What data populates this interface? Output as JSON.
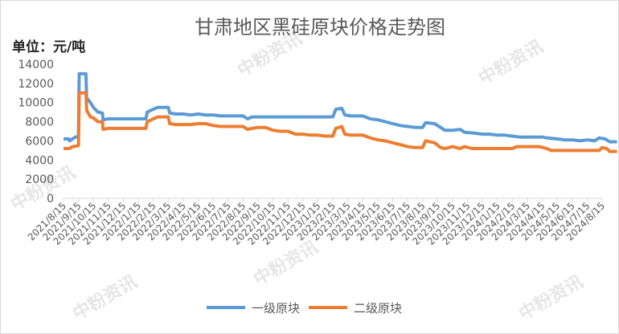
{
  "chart_data": {
    "type": "line",
    "title": "甘肃地区黑硅原块价格走势图",
    "unit_label": "单位：元/吨",
    "watermark": "中粉资讯",
    "ylim": [
      0,
      14000
    ],
    "yticks": [
      0,
      2000,
      4000,
      6000,
      8000,
      10000,
      12000,
      14000
    ],
    "categories": [
      "2021/8/15",
      "2021/9/15",
      "2021/10/15",
      "2021/11/15",
      "2021/12/15",
      "2022/1/15",
      "2022/2/15",
      "2022/3/15",
      "2022/4/15",
      "2022/5/15",
      "2022/6/15",
      "2022/7/15",
      "2022/8/15",
      "2022/9/15",
      "2022/10/15",
      "2022/11/15",
      "2022/12/15",
      "2023/1/15",
      "2023/2/15",
      "2023/3/15",
      "2023/4/15",
      "2023/5/15",
      "2023/6/15",
      "2023/7/15",
      "2023/8/15",
      "2023/9/15",
      "2023/10/15",
      "2023/11/15",
      "2023/12/15",
      "2024/1/15",
      "2024/2/15",
      "2024/3/15",
      "2024/4/15",
      "2024/5/15",
      "2024/6/15",
      "2024/7/15",
      "2024/8/15"
    ],
    "grid": false,
    "legend": "bottom",
    "series": [
      {
        "name": "一级原块",
        "color": "#5b9bd5",
        "values": [
          [
            0,
            6200
          ],
          [
            0.35,
            6200
          ],
          [
            0.4,
            6000
          ],
          [
            0.6,
            6200
          ],
          [
            0.8,
            6400
          ],
          [
            1.0,
            6500
          ],
          [
            1.05,
            13000
          ],
          [
            1.5,
            13000
          ],
          [
            1.55,
            10500
          ],
          [
            1.8,
            10000
          ],
          [
            2.0,
            9500
          ],
          [
            2.3,
            9000
          ],
          [
            2.6,
            8900
          ],
          [
            2.65,
            8200
          ],
          [
            3.0,
            8300
          ],
          [
            3.5,
            8300
          ],
          [
            4.0,
            8300
          ],
          [
            4.5,
            8300
          ],
          [
            5.0,
            8300
          ],
          [
            5.5,
            8300
          ],
          [
            5.6,
            9000
          ],
          [
            6.0,
            9300
          ],
          [
            6.3,
            9500
          ],
          [
            7.0,
            9500
          ],
          [
            7.1,
            8900
          ],
          [
            7.5,
            8800
          ],
          [
            8.0,
            8800
          ],
          [
            8.5,
            8700
          ],
          [
            9.0,
            8800
          ],
          [
            9.5,
            8700
          ],
          [
            10.0,
            8700
          ],
          [
            10.5,
            8600
          ],
          [
            11.0,
            8600
          ],
          [
            12.0,
            8600
          ],
          [
            12.3,
            8300
          ],
          [
            12.6,
            8500
          ],
          [
            13.0,
            8500
          ],
          [
            14.0,
            8500
          ],
          [
            15.0,
            8500
          ],
          [
            16.0,
            8500
          ],
          [
            17.0,
            8500
          ],
          [
            18.0,
            8500
          ],
          [
            18.2,
            9300
          ],
          [
            18.6,
            9400
          ],
          [
            18.8,
            8700
          ],
          [
            19.2,
            8600
          ],
          [
            20.0,
            8600
          ],
          [
            20.5,
            8300
          ],
          [
            21.0,
            8200
          ],
          [
            21.5,
            8000
          ],
          [
            22.0,
            7800
          ],
          [
            22.5,
            7600
          ],
          [
            23.0,
            7500
          ],
          [
            23.5,
            7400
          ],
          [
            24.0,
            7400
          ],
          [
            24.2,
            7900
          ],
          [
            24.8,
            7800
          ],
          [
            25.2,
            7400
          ],
          [
            25.5,
            7100
          ],
          [
            26.0,
            7100
          ],
          [
            26.5,
            7200
          ],
          [
            26.8,
            6900
          ],
          [
            27.5,
            6800
          ],
          [
            28.0,
            6700
          ],
          [
            28.5,
            6700
          ],
          [
            29.0,
            6600
          ],
          [
            29.5,
            6600
          ],
          [
            30.0,
            6500
          ],
          [
            30.5,
            6400
          ],
          [
            31.0,
            6400
          ],
          [
            32.0,
            6400
          ],
          [
            32.3,
            6300
          ],
          [
            33.0,
            6200
          ],
          [
            33.5,
            6100
          ],
          [
            34.0,
            6100
          ],
          [
            34.5,
            6000
          ],
          [
            35.0,
            6100
          ],
          [
            35.5,
            6000
          ],
          [
            35.8,
            6300
          ],
          [
            36.2,
            6200
          ],
          [
            36.5,
            5900
          ],
          [
            37.0,
            5900
          ]
        ]
      },
      {
        "name": "二级原块",
        "color": "#ed7d31",
        "values": [
          [
            0,
            5200
          ],
          [
            0.4,
            5200
          ],
          [
            0.6,
            5400
          ],
          [
            1.0,
            5500
          ],
          [
            1.05,
            11000
          ],
          [
            1.5,
            11000
          ],
          [
            1.55,
            9200
          ],
          [
            1.8,
            8500
          ],
          [
            2.0,
            8400
          ],
          [
            2.3,
            8000
          ],
          [
            2.6,
            8000
          ],
          [
            2.65,
            7200
          ],
          [
            3.0,
            7300
          ],
          [
            3.5,
            7300
          ],
          [
            4.0,
            7300
          ],
          [
            4.5,
            7300
          ],
          [
            5.0,
            7300
          ],
          [
            5.5,
            7300
          ],
          [
            5.6,
            8000
          ],
          [
            6.0,
            8300
          ],
          [
            6.3,
            8500
          ],
          [
            7.0,
            8500
          ],
          [
            7.1,
            7800
          ],
          [
            7.5,
            7700
          ],
          [
            8.0,
            7700
          ],
          [
            8.5,
            7700
          ],
          [
            9.0,
            7800
          ],
          [
            9.5,
            7800
          ],
          [
            10.0,
            7600
          ],
          [
            10.5,
            7500
          ],
          [
            11.0,
            7500
          ],
          [
            12.0,
            7500
          ],
          [
            12.3,
            7200
          ],
          [
            12.6,
            7300
          ],
          [
            13.0,
            7400
          ],
          [
            13.5,
            7400
          ],
          [
            14.0,
            7100
          ],
          [
            14.5,
            7000
          ],
          [
            15.0,
            7000
          ],
          [
            15.5,
            6700
          ],
          [
            16.0,
            6700
          ],
          [
            16.5,
            6600
          ],
          [
            17.0,
            6600
          ],
          [
            17.5,
            6500
          ],
          [
            18.0,
            6500
          ],
          [
            18.2,
            7300
          ],
          [
            18.6,
            7500
          ],
          [
            18.8,
            6700
          ],
          [
            19.2,
            6600
          ],
          [
            20.0,
            6600
          ],
          [
            20.5,
            6300
          ],
          [
            21.0,
            6100
          ],
          [
            21.5,
            6000
          ],
          [
            22.0,
            5800
          ],
          [
            22.5,
            5600
          ],
          [
            23.0,
            5400
          ],
          [
            23.5,
            5300
          ],
          [
            24.0,
            5300
          ],
          [
            24.2,
            6000
          ],
          [
            24.8,
            5800
          ],
          [
            25.2,
            5300
          ],
          [
            25.5,
            5200
          ],
          [
            26.0,
            5400
          ],
          [
            26.5,
            5200
          ],
          [
            26.8,
            5400
          ],
          [
            27.3,
            5200
          ],
          [
            27.8,
            5200
          ],
          [
            28.5,
            5200
          ],
          [
            29.0,
            5200
          ],
          [
            29.5,
            5200
          ],
          [
            30.0,
            5200
          ],
          [
            30.3,
            5400
          ],
          [
            31.0,
            5400
          ],
          [
            31.8,
            5400
          ],
          [
            32.3,
            5200
          ],
          [
            32.6,
            5000
          ],
          [
            33.0,
            5000
          ],
          [
            34.0,
            5000
          ],
          [
            35.0,
            5000
          ],
          [
            35.8,
            5000
          ],
          [
            36.0,
            5300
          ],
          [
            36.3,
            5200
          ],
          [
            36.5,
            4900
          ],
          [
            37.0,
            4900
          ]
        ]
      }
    ]
  }
}
